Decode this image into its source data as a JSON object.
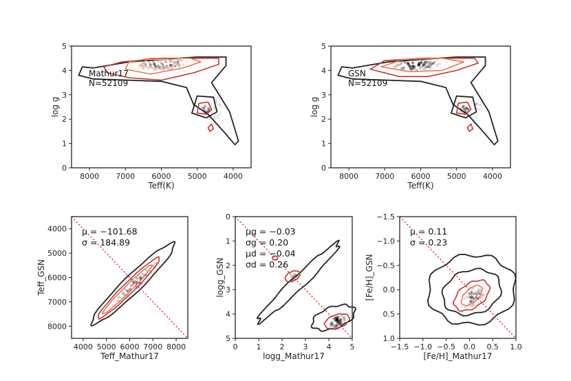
{
  "chart_data": [
    {
      "id": "p1",
      "type": "heatmap",
      "xlabel": "Teff(K)",
      "ylabel": "log g",
      "xlim": [
        8500,
        3500
      ],
      "ylim": [
        5,
        0
      ],
      "xticks": [
        8000,
        7000,
        6000,
        5000,
        4000
      ],
      "yticks": [
        0,
        1,
        2,
        3,
        4,
        5
      ],
      "annotation": [
        "Mathur17",
        "N=52109"
      ],
      "branches": {
        "main_sequence": {
          "teff_range": [
            8300,
            4500
          ],
          "logg_range": [
            3.7,
            4.5
          ],
          "peak": [
            6000,
            4.45
          ]
        },
        "red_clump": {
          "teff": 4850,
          "logg": 2.4
        },
        "red_giant_branch": {
          "teff_range": [
            5100,
            4100
          ],
          "logg_range": [
            3.5,
            1.0
          ]
        }
      }
    },
    {
      "id": "p2",
      "type": "heatmap",
      "xlabel": "Teff(K)",
      "ylabel": "log g",
      "xlim": [
        8500,
        3500
      ],
      "ylim": [
        5,
        0
      ],
      "xticks": [
        8000,
        7000,
        6000,
        5000,
        4000
      ],
      "yticks": [
        0,
        1,
        2,
        3,
        4,
        5
      ],
      "annotation": [
        "GSN",
        "N=52109"
      ],
      "branches": {
        "main_sequence": {
          "teff_range": [
            8200,
            4200
          ],
          "logg_range": [
            3.7,
            4.5
          ],
          "peak": [
            6150,
            4.3
          ]
        },
        "red_clump": {
          "teff": 4800,
          "logg": 2.45
        },
        "red_giant_branch": {
          "teff_range": [
            5100,
            4200
          ],
          "logg_range": [
            3.5,
            1.0
          ]
        }
      }
    },
    {
      "id": "p3",
      "type": "scatter",
      "xlabel": "Teff_Mathur17",
      "ylabel": "Teff_GSN",
      "xlim": [
        3500,
        8500
      ],
      "ylim": [
        3500,
        8500
      ],
      "xticks": [
        4000,
        5000,
        6000,
        7000,
        8000
      ],
      "yticks": [
        4000,
        5000,
        6000,
        7000,
        8000
      ],
      "stats": {
        "mu": "μ = −101.68",
        "sigma": "σ = 184.89"
      },
      "one_to_one": true
    },
    {
      "id": "p4",
      "type": "scatter",
      "xlabel": "logg_Mathur17",
      "ylabel": "logg_GSN",
      "xlim": [
        0,
        5
      ],
      "ylim": [
        0,
        5
      ],
      "xticks": [
        0,
        1,
        2,
        3,
        4,
        5
      ],
      "yticks": [
        0,
        1,
        2,
        3,
        4,
        5
      ],
      "stats": {
        "mu_g": "μg = −0.03",
        "sigma_g": "σg = 0.20",
        "mu_d": "μd = −0.04",
        "sigma_d": "σd = 0.26"
      },
      "one_to_one": true
    },
    {
      "id": "p5",
      "type": "scatter",
      "xlabel": "[Fe/H]_Mathur17",
      "ylabel": "[Fe/H]_GSN",
      "xlim": [
        -1.5,
        1.0
      ],
      "ylim": [
        -1.5,
        1.0
      ],
      "xticks": [
        -1.5,
        -1.0,
        -0.5,
        0.0,
        0.5,
        1.0
      ],
      "yticks": [
        -1.5,
        -1.0,
        -0.5,
        0.0,
        0.5,
        1.0
      ],
      "stats": {
        "mu": "μ = 0.11",
        "sigma": "σ = 0.23"
      },
      "one_to_one": true
    }
  ]
}
